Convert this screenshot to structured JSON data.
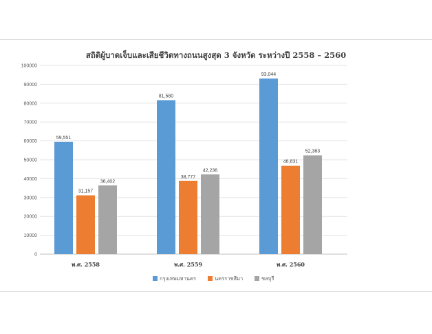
{
  "chart_data": {
    "type": "bar",
    "title": "สถิติผู้บาดเจ็บและเสียชีวิตทางถนนสูงสุด 3 จังหวัด ระหว่างปี 2558 – 2560",
    "categories": [
      "พ.ศ. 2558",
      "พ.ศ. 2559",
      "พ.ศ. 2560"
    ],
    "series": [
      {
        "name": "กรุงเทพมหานคร",
        "color": "#5b9bd5",
        "values": [
          59551,
          81580,
          93044
        ],
        "labels": [
          "59,551",
          "81,580",
          "93,044"
        ]
      },
      {
        "name": "นครราชสีมา",
        "color": "#ed7d31",
        "values": [
          31157,
          38777,
          46831
        ],
        "labels": [
          "31,157",
          "38,777",
          "46,831"
        ]
      },
      {
        "name": "ชลบุรี",
        "color": "#a5a5a5",
        "values": [
          36402,
          42236,
          52363
        ],
        "labels": [
          "36,402",
          "42,236",
          "52,363"
        ]
      }
    ],
    "y_ticks": [
      "0",
      "10000",
      "20000",
      "30000",
      "40000",
      "50000",
      "60000",
      "70000",
      "80000",
      "90000",
      "100000"
    ],
    "ylim": [
      0,
      100000
    ],
    "grid": true,
    "legend": "bottom"
  }
}
